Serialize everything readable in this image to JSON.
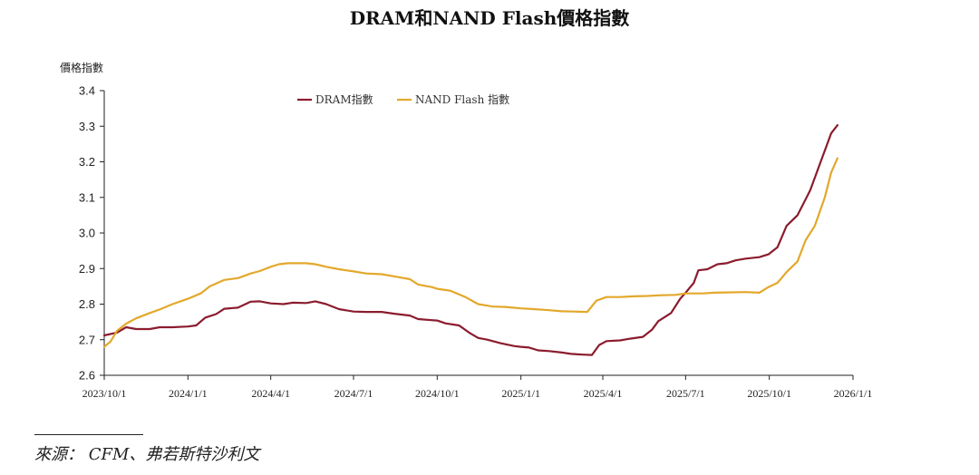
{
  "chart_data": {
    "type": "line",
    "title": "DRAM和NAND Flash價格指數",
    "ylabel": "價格指數",
    "xlabel": "",
    "ylim": [
      2.6,
      3.4
    ],
    "yticks": [
      "2.6",
      "2.7",
      "2.8",
      "2.9",
      "3.0",
      "3.1",
      "3.2",
      "3.3",
      "3.4"
    ],
    "xlim": [
      "2023-10-01",
      "2026-01-01"
    ],
    "xticks": [
      "2023/10/1",
      "2024/1/1",
      "2024/4/1",
      "2024/7/1",
      "2024/10/1",
      "2025/1/1",
      "2025/4/1",
      "2025/7/1",
      "2025/10/1",
      "2026/1/1"
    ],
    "xtick_dates": [
      "2023-10-01",
      "2024-01-01",
      "2024-04-01",
      "2024-07-01",
      "2024-10-01",
      "2025-01-01",
      "2025-04-01",
      "2025-07-01",
      "2025-10-01",
      "2026-01-01"
    ],
    "grid": false,
    "legend_position": "top-center",
    "series": [
      {
        "name": "DRAM指數",
        "color": "#8b1c2e",
        "points": [
          [
            "2023-10-01",
            2.712
          ],
          [
            "2023-10-15",
            2.72
          ],
          [
            "2023-10-25",
            2.735
          ],
          [
            "2023-11-05",
            2.73
          ],
          [
            "2023-11-20",
            2.73
          ],
          [
            "2023-12-01",
            2.735
          ],
          [
            "2023-12-15",
            2.735
          ],
          [
            "2024-01-01",
            2.737
          ],
          [
            "2024-01-10",
            2.74
          ],
          [
            "2024-01-20",
            2.762
          ],
          [
            "2024-02-01",
            2.772
          ],
          [
            "2024-02-10",
            2.787
          ],
          [
            "2024-02-25",
            2.79
          ],
          [
            "2024-03-10",
            2.807
          ],
          [
            "2024-03-20",
            2.808
          ],
          [
            "2024-04-01",
            2.802
          ],
          [
            "2024-04-15",
            2.8
          ],
          [
            "2024-04-25",
            2.804
          ],
          [
            "2024-05-10",
            2.803
          ],
          [
            "2024-05-20",
            2.808
          ],
          [
            "2024-06-01",
            2.8
          ],
          [
            "2024-06-15",
            2.786
          ],
          [
            "2024-07-01",
            2.779
          ],
          [
            "2024-07-15",
            2.778
          ],
          [
            "2024-08-01",
            2.778
          ],
          [
            "2024-08-15",
            2.773
          ],
          [
            "2024-09-01",
            2.768
          ],
          [
            "2024-09-10",
            2.758
          ],
          [
            "2024-09-25",
            2.755
          ],
          [
            "2024-10-01",
            2.754
          ],
          [
            "2024-10-10",
            2.746
          ],
          [
            "2024-10-25",
            2.74
          ],
          [
            "2024-11-05",
            2.72
          ],
          [
            "2024-11-15",
            2.705
          ],
          [
            "2024-11-25",
            2.7
          ],
          [
            "2024-12-10",
            2.69
          ],
          [
            "2024-12-25",
            2.682
          ],
          [
            "2025-01-01",
            2.68
          ],
          [
            "2025-01-10",
            2.678
          ],
          [
            "2025-01-20",
            2.67
          ],
          [
            "2025-02-01",
            2.668
          ],
          [
            "2025-02-15",
            2.664
          ],
          [
            "2025-02-25",
            2.66
          ],
          [
            "2025-03-10",
            2.658
          ],
          [
            "2025-03-20",
            2.657
          ],
          [
            "2025-03-28",
            2.685
          ],
          [
            "2025-04-05",
            2.696
          ],
          [
            "2025-04-20",
            2.698
          ],
          [
            "2025-05-01",
            2.703
          ],
          [
            "2025-05-15",
            2.708
          ],
          [
            "2025-05-25",
            2.728
          ],
          [
            "2025-06-01",
            2.752
          ],
          [
            "2025-06-15",
            2.775
          ],
          [
            "2025-06-25",
            2.815
          ],
          [
            "2025-07-01",
            2.832
          ],
          [
            "2025-07-10",
            2.86
          ],
          [
            "2025-07-15",
            2.895
          ],
          [
            "2025-07-25",
            2.898
          ],
          [
            "2025-08-05",
            2.912
          ],
          [
            "2025-08-15",
            2.915
          ],
          [
            "2025-08-25",
            2.923
          ],
          [
            "2025-09-05",
            2.928
          ],
          [
            "2025-09-20",
            2.932
          ],
          [
            "2025-09-30",
            2.94
          ],
          [
            "2025-10-10",
            2.96
          ],
          [
            "2025-10-20",
            3.02
          ],
          [
            "2025-11-01",
            3.05
          ],
          [
            "2025-11-15",
            3.12
          ],
          [
            "2025-11-25",
            3.19
          ],
          [
            "2025-12-08",
            3.28
          ],
          [
            "2025-12-15",
            3.303
          ]
        ]
      },
      {
        "name": "NAND Flash 指數",
        "color": "#e3a82b",
        "points": [
          [
            "2023-10-01",
            2.68
          ],
          [
            "2023-10-08",
            2.695
          ],
          [
            "2023-10-15",
            2.725
          ],
          [
            "2023-10-25",
            2.745
          ],
          [
            "2023-11-05",
            2.76
          ],
          [
            "2023-11-20",
            2.775
          ],
          [
            "2023-12-01",
            2.785
          ],
          [
            "2023-12-15",
            2.8
          ],
          [
            "2024-01-01",
            2.815
          ],
          [
            "2024-01-15",
            2.83
          ],
          [
            "2024-01-25",
            2.85
          ],
          [
            "2024-02-10",
            2.868
          ],
          [
            "2024-02-25",
            2.873
          ],
          [
            "2024-03-10",
            2.886
          ],
          [
            "2024-03-20",
            2.893
          ],
          [
            "2024-04-01",
            2.905
          ],
          [
            "2024-04-10",
            2.912
          ],
          [
            "2024-04-20",
            2.915
          ],
          [
            "2024-05-10",
            2.915
          ],
          [
            "2024-05-20",
            2.912
          ],
          [
            "2024-06-01",
            2.905
          ],
          [
            "2024-06-15",
            2.898
          ],
          [
            "2024-07-01",
            2.892
          ],
          [
            "2024-07-15",
            2.886
          ],
          [
            "2024-08-01",
            2.884
          ],
          [
            "2024-08-15",
            2.878
          ],
          [
            "2024-09-01",
            2.87
          ],
          [
            "2024-09-10",
            2.855
          ],
          [
            "2024-09-25",
            2.848
          ],
          [
            "2024-10-01",
            2.843
          ],
          [
            "2024-10-15",
            2.838
          ],
          [
            "2024-11-01",
            2.82
          ],
          [
            "2024-11-15",
            2.8
          ],
          [
            "2024-12-01",
            2.793
          ],
          [
            "2024-12-15",
            2.792
          ],
          [
            "2025-01-01",
            2.788
          ],
          [
            "2025-01-15",
            2.786
          ],
          [
            "2025-02-01",
            2.783
          ],
          [
            "2025-02-15",
            2.78
          ],
          [
            "2025-03-01",
            2.779
          ],
          [
            "2025-03-15",
            2.778
          ],
          [
            "2025-03-25",
            2.81
          ],
          [
            "2025-04-05",
            2.82
          ],
          [
            "2025-04-20",
            2.82
          ],
          [
            "2025-05-05",
            2.822
          ],
          [
            "2025-05-20",
            2.823
          ],
          [
            "2025-06-05",
            2.825
          ],
          [
            "2025-06-20",
            2.826
          ],
          [
            "2025-07-01",
            2.83
          ],
          [
            "2025-07-20",
            2.83
          ],
          [
            "2025-08-01",
            2.832
          ],
          [
            "2025-08-20",
            2.833
          ],
          [
            "2025-09-05",
            2.834
          ],
          [
            "2025-09-20",
            2.832
          ],
          [
            "2025-09-30",
            2.848
          ],
          [
            "2025-10-10",
            2.86
          ],
          [
            "2025-10-20",
            2.89
          ],
          [
            "2025-11-01",
            2.92
          ],
          [
            "2025-11-10",
            2.98
          ],
          [
            "2025-11-20",
            3.02
          ],
          [
            "2025-12-01",
            3.1
          ],
          [
            "2025-12-08",
            3.17
          ],
          [
            "2025-12-15",
            3.21
          ]
        ]
      }
    ]
  },
  "source": "來源： CFM、弗若斯特沙利文"
}
